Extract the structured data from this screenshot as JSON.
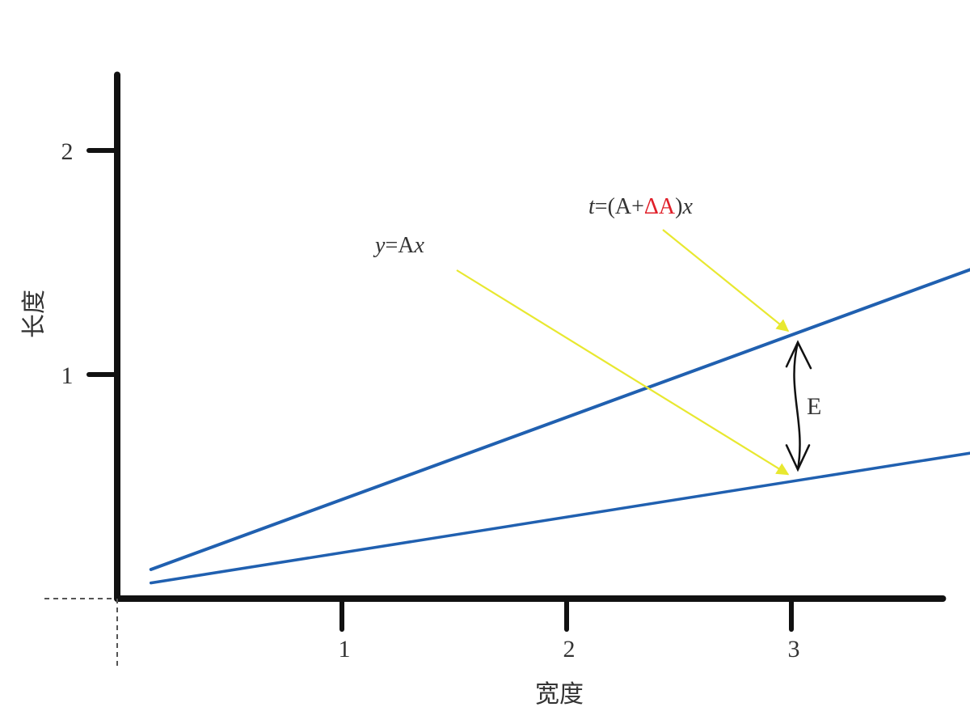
{
  "chart_data": {
    "type": "line",
    "title": "",
    "xlabel": "宽度",
    "ylabel": "长度",
    "xlim": [
      0,
      3.8
    ],
    "ylim": [
      0,
      2.5
    ],
    "xticks": [
      "1",
      "2",
      "3"
    ],
    "yticks": [
      "1",
      "2"
    ],
    "grid": false,
    "series": [
      {
        "x": [
          0.15,
          3.8
        ],
        "y": [
          0.13,
          1.47
        ],
        "color": "#2060b0"
      },
      {
        "x": [
          0.15,
          3.8
        ],
        "y": [
          0.07,
          0.65
        ],
        "color": "#2060b0"
      }
    ],
    "annotations": {
      "lower_line": {
        "prefix": "y",
        "mid": "=A",
        "suffix": "x",
        "points_to": {
          "x": 3.0,
          "y": 0.54
        }
      },
      "upper_line": {
        "prefix": "t",
        "mid": "=(A+",
        "delta": "ΔA",
        "close": ")",
        "suffix": "x",
        "points_to": {
          "x": 3.0,
          "y": 1.18
        }
      },
      "gap": {
        "label": "E",
        "x": 3.0,
        "y_from": 0.54,
        "y_to": 1.18
      }
    },
    "arrow_color": "#e8e830",
    "delta_color": "#e0202a"
  }
}
